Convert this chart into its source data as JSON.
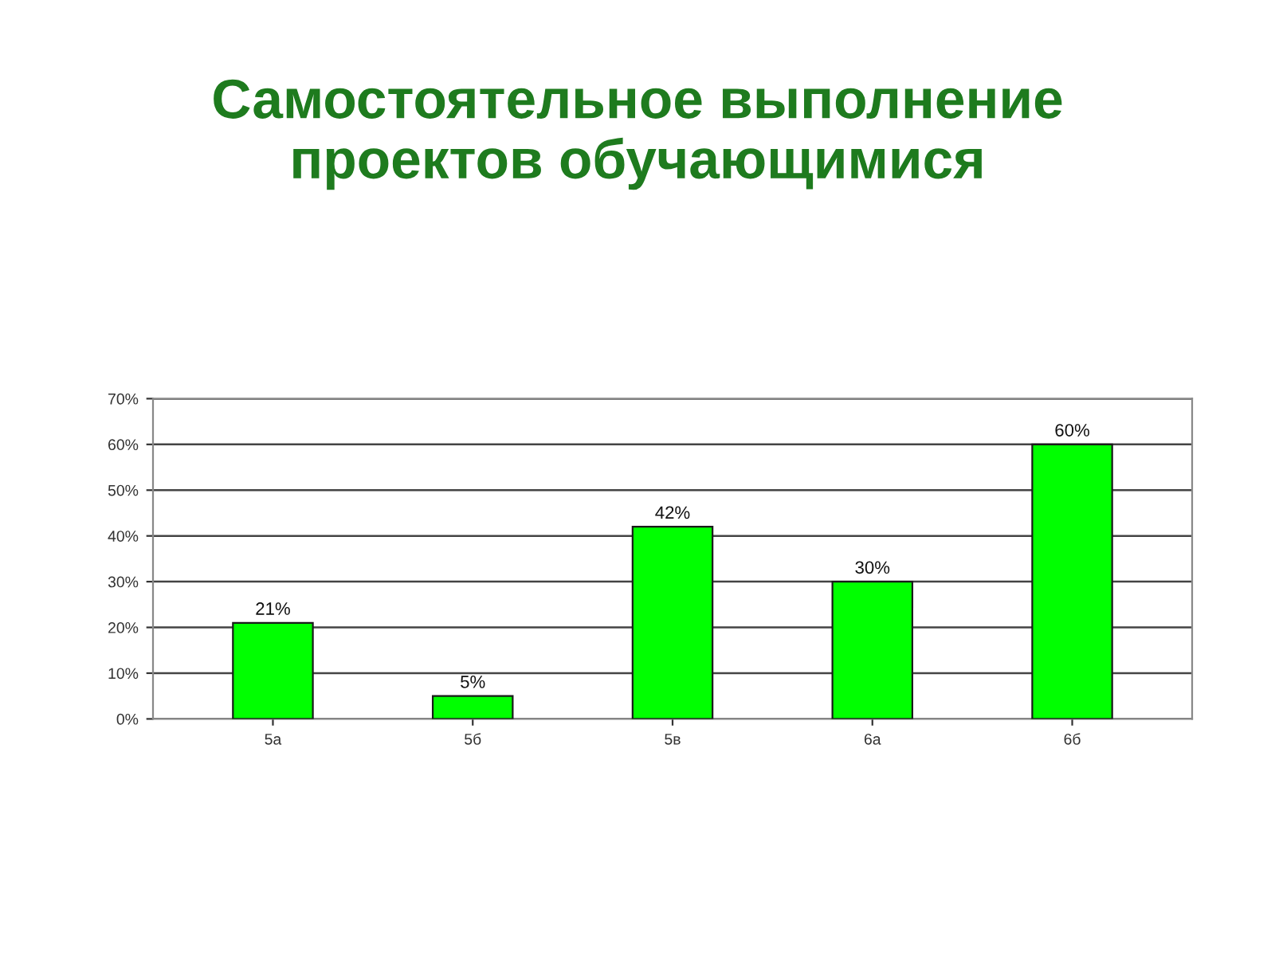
{
  "chart_data": {
    "type": "bar",
    "title": "Самостоятельное выполнение\nпроектов обучающимися",
    "categories": [
      "5а",
      "5б",
      "5в",
      "6а",
      "6б"
    ],
    "values": [
      21,
      5,
      42,
      30,
      60
    ],
    "color": "#00ff00",
    "value_labels": [
      "21%",
      "5%",
      "42%",
      "30%",
      "60%"
    ],
    "ylim": [
      0,
      70
    ],
    "yticks": [
      {
        "value": 0,
        "label": "0%"
      },
      {
        "value": 10,
        "label": "10%"
      },
      {
        "value": 20,
        "label": "20%"
      },
      {
        "value": 30,
        "label": "30%"
      },
      {
        "value": 40,
        "label": "40%"
      },
      {
        "value": 50,
        "label": "50%"
      },
      {
        "value": 60,
        "label": "60%"
      },
      {
        "value": 70,
        "label": "70%"
      }
    ],
    "grid": "y",
    "legend": false
  }
}
